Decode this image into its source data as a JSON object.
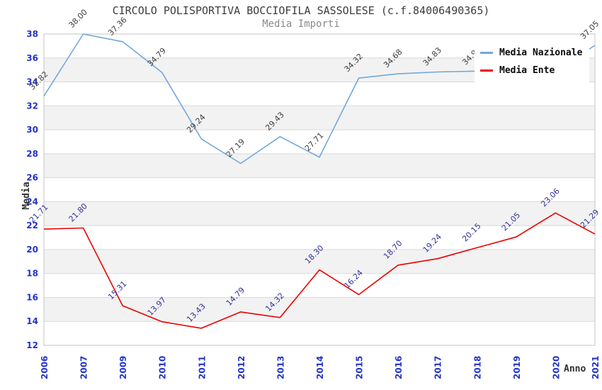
{
  "header": {
    "title": "CIRCOLO POLISPORTIVA BOCCIOFILA SASSOLESE (c.f.84006490365)",
    "subtitle": "Media Importi"
  },
  "legend": {
    "position": "top-right",
    "items": [
      {
        "label": "Media Nazionale",
        "color": "#6fa8dc"
      },
      {
        "label": "Media Ente",
        "color": "#ee0000"
      }
    ]
  },
  "axes": {
    "y_title": "Media",
    "x_title": "Anno",
    "tick_color": "#2233cc"
  },
  "chart_data": {
    "type": "line",
    "title": "CIRCOLO POLISPORTIVA BOCCIOFILA SASSOLESE (c.f.84006490365)",
    "subtitle": "Media Importi",
    "xlabel": "Anno",
    "ylabel": "Media",
    "categories": [
      "2006",
      "2007",
      "2009",
      "2010",
      "2011",
      "2012",
      "2013",
      "2014",
      "2015",
      "2016",
      "2017",
      "2018",
      "2019",
      "2020",
      "2021"
    ],
    "series": [
      {
        "name": "Media Nazionale",
        "color": "#6fa8dc",
        "label_color": "#3f3f3f",
        "values": [
          32.82,
          38.0,
          37.36,
          34.79,
          29.24,
          27.19,
          29.43,
          27.71,
          34.32,
          34.68,
          34.83,
          34.9,
          34.93,
          34.95,
          37.05
        ],
        "labels": [
          "32.82",
          "38.00",
          "37.36",
          "34.79",
          "29.24",
          "27.19",
          "29.43",
          "27.71",
          "34.32",
          "34.68",
          "34.83",
          "34.90",
          "",
          "",
          "37.05"
        ]
      },
      {
        "name": "Media Ente",
        "color": "#ee0000",
        "label_color": "#333399",
        "values": [
          21.71,
          21.8,
          15.31,
          13.97,
          13.43,
          14.79,
          14.32,
          18.3,
          16.24,
          18.7,
          19.24,
          20.15,
          21.05,
          23.06,
          21.29
        ],
        "labels": [
          "21.71",
          "21.80",
          "15.31",
          "13.97",
          "13.43",
          "14.79",
          "14.32",
          "18.30",
          "16.24",
          "18.70",
          "19.24",
          "20.15",
          "21.05",
          "23.06",
          "21.29"
        ]
      }
    ],
    "ylim": [
      12,
      38
    ],
    "ytick_step": 2,
    "grid": true,
    "band_colors": [
      "#ffffff",
      "#f2f2f2"
    ],
    "grid_color": "#d9d9d9",
    "border_color": "#c4c4c4",
    "legend_position": "top-right"
  }
}
